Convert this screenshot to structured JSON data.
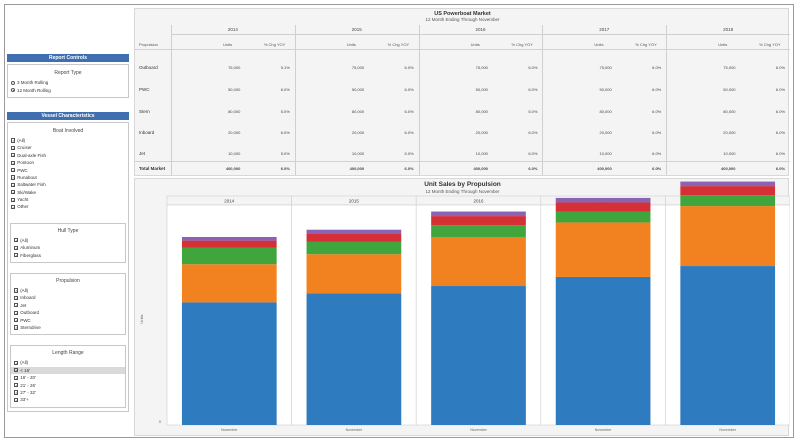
{
  "sidebar": {
    "report_controls": {
      "header": "Report Controls",
      "report_type_label": "Report Type",
      "options": [
        {
          "label": "3 Month Rolling",
          "selected": false
        },
        {
          "label": "12 Month Rolling",
          "selected": true
        }
      ]
    },
    "vessel": {
      "header": "Vessel Characteristics",
      "boat_involved": {
        "title": "Boat Involved",
        "items": [
          "(All)",
          "Cruiser",
          "Dual-axle Fish",
          "Pontoon",
          "PWC",
          "Runabout",
          "Saltwater Fish",
          "Ski/Wake",
          "Yacht",
          "Other"
        ]
      },
      "hull_type": {
        "title": "Hull Type",
        "items": [
          "(All)",
          "Aluminum",
          "Fiberglass"
        ]
      },
      "propulsion": {
        "title": "Propulsion",
        "items": [
          "(All)",
          "Inboard",
          "Jet",
          "Outboard",
          "PWC",
          "Sterndrive"
        ]
      },
      "length_range": {
        "title": "Length Range",
        "items": [
          "(All)",
          "< 16'",
          "16' - 20'",
          "21' - 26'",
          "27' - 32'",
          "33'+"
        ],
        "highlighted_index": 1
      }
    }
  },
  "table": {
    "title": "US Powerboat Market",
    "subtitle": "12 Month Ending Through November",
    "row_header": "Propulsion",
    "col_headers": [
      "Units",
      "% Chg YOY"
    ],
    "years": [
      "2014",
      "2015",
      "2016",
      "2017",
      "2018"
    ],
    "rows": [
      {
        "label": "Outboard",
        "cells": [
          "75,000",
          "5.1%",
          "75,000",
          "6.0%",
          "75,000",
          "6.0%",
          "75,000",
          "6.0%",
          "75,000",
          "6.0%"
        ]
      },
      {
        "label": "PWC",
        "cells": [
          "50,000",
          "6.0%",
          "50,000",
          "6.0%",
          "50,000",
          "6.0%",
          "50,000",
          "6.0%",
          "50,000",
          "6.0%"
        ]
      },
      {
        "label": "Stern",
        "cells": [
          "80,000",
          "5.0%",
          "80,000",
          "6.0%",
          "80,000",
          "5.0%",
          "80,000",
          "6.0%",
          "80,000",
          "6.0%"
        ]
      },
      {
        "label": "Inboard",
        "cells": [
          "20,000",
          "6.0%",
          "20,000",
          "6.0%",
          "20,000",
          "6.0%",
          "20,000",
          "6.0%",
          "20,000",
          "6.0%"
        ]
      },
      {
        "label": "Jet",
        "cells": [
          "10,000",
          "5.0%",
          "10,000",
          "5.0%",
          "10,000",
          "6.0%",
          "10,000",
          "6.0%",
          "10,000",
          "6.0%"
        ]
      }
    ],
    "total": {
      "label": "Total Market",
      "cells": [
        "400,000",
        "6.0%",
        "400,000",
        "6.0%",
        "400,000",
        "6.0%",
        "400,000",
        "6.0%",
        "400,000",
        "6.0%"
      ]
    }
  },
  "chart_data": {
    "type": "bar",
    "title": "Unit Sales by Propulsion",
    "subtitle": "12 Month Ending Through November",
    "ylabel": "Units",
    "categories": [
      "2014",
      "2015",
      "2016",
      "2017",
      "2018"
    ],
    "bar_label": "November",
    "ylim": [
      0,
      240000
    ],
    "series": [
      {
        "values": [
          135000,
          145000,
          153000,
          163000,
          175000
        ],
        "color": "#2f7bbf"
      },
      {
        "values": [
          42000,
          43000,
          54000,
          60000,
          66000
        ],
        "color": "#f2821f"
      },
      {
        "values": [
          18000,
          14000,
          13000,
          12000,
          12000
        ],
        "color": "#3fa53c"
      },
      {
        "values": [
          8000,
          9000,
          10000,
          10000,
          10000
        ],
        "color": "#d62f35"
      },
      {
        "values": [
          4000,
          4000,
          5000,
          5000,
          5000
        ],
        "color": "#8a63b5"
      }
    ]
  }
}
